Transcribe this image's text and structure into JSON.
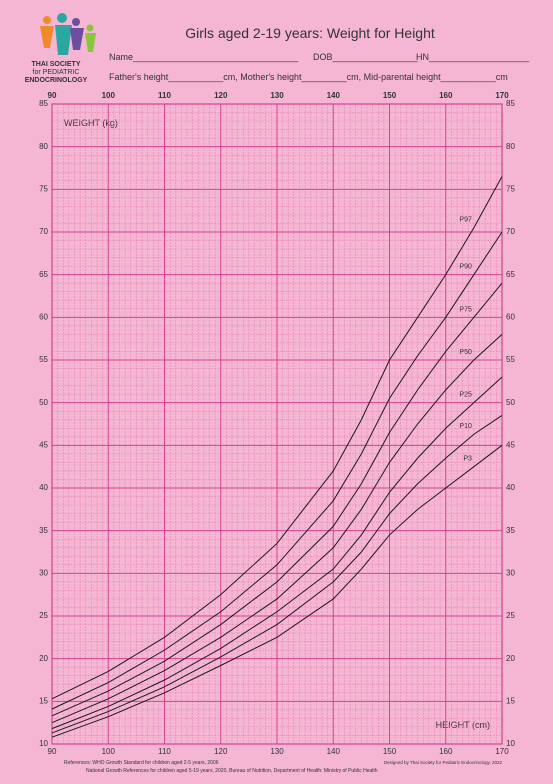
{
  "chart_data": {
    "type": "line",
    "title": "Girls aged 2-19 years: Weight for Height",
    "logo": {
      "line1": "THAI SOCIETY",
      "line2": "for PEDIATRIC",
      "line3": "ENDOCRINOLOGY"
    },
    "form_fields": {
      "name": "Name_________________________________",
      "dob": "DOB_________________",
      "hn": "HN____________________",
      "parents": "Father's height___________cm, Mother's height_________cm, Mid-parental height___________cm"
    },
    "y_label": "WEIGHT (kg)",
    "x_label": "HEIGHT (cm)",
    "x": [
      90,
      100,
      110,
      120,
      130,
      140,
      145,
      150,
      155,
      160,
      165,
      170
    ],
    "series": [
      {
        "name": "P97",
        "color": "#1a1a1a",
        "values": [
          15.3,
          18.5,
          22.5,
          27.5,
          33.5,
          42,
          48,
          55,
          60,
          65,
          70.5,
          76.5
        ]
      },
      {
        "name": "P90",
        "color": "#1a1a1a",
        "values": [
          14.1,
          17.2,
          21,
          25.5,
          31,
          38.5,
          44,
          50.5,
          55.5,
          60,
          65,
          70
        ]
      },
      {
        "name": "P75",
        "color": "#1a1a1a",
        "values": [
          13.3,
          16.2,
          19.7,
          24,
          29,
          35.5,
          40.5,
          46.5,
          51.5,
          56,
          60,
          64
        ]
      },
      {
        "name": "P50",
        "color": "#1a1a1a",
        "values": [
          12.5,
          15.3,
          18.6,
          22.5,
          27,
          33,
          37.5,
          43,
          47.5,
          51.5,
          55,
          58
        ]
      },
      {
        "name": "P25",
        "color": "#1a1a1a",
        "values": [
          11.8,
          14.4,
          17.5,
          21.2,
          25.5,
          30.5,
          34.5,
          39.5,
          43.5,
          47,
          50,
          53
        ]
      },
      {
        "name": "P10",
        "color": "#1a1a1a",
        "values": [
          11.3,
          13.8,
          16.7,
          20.2,
          24,
          29,
          32.5,
          37,
          40.5,
          43.5,
          46.3,
          48.5
        ]
      },
      {
        "name": "P3",
        "color": "#1a1a1a",
        "values": [
          10.8,
          13.2,
          16,
          19.2,
          22.5,
          27,
          30.5,
          34.5,
          37.5,
          40,
          42.5,
          45
        ]
      }
    ],
    "xlim": [
      90,
      170
    ],
    "ylim": [
      10,
      85
    ],
    "xticks": [
      90,
      100,
      110,
      120,
      130,
      140,
      150,
      160,
      170
    ],
    "yticks": [
      10,
      15,
      20,
      25,
      30,
      35,
      40,
      45,
      50,
      55,
      60,
      65,
      70,
      75,
      80,
      85
    ],
    "grid": true,
    "references": [
      "References:   WHO Growth Standard for children aged 2-5 years, 2006",
      "National Growth References for children aged 5-19 years, 2020, Bureau of Nutrition, Department of Health: Ministry of Public Health"
    ],
    "credit": "Designed by Thai Society for Pediatric Endocrinology, 2022"
  }
}
